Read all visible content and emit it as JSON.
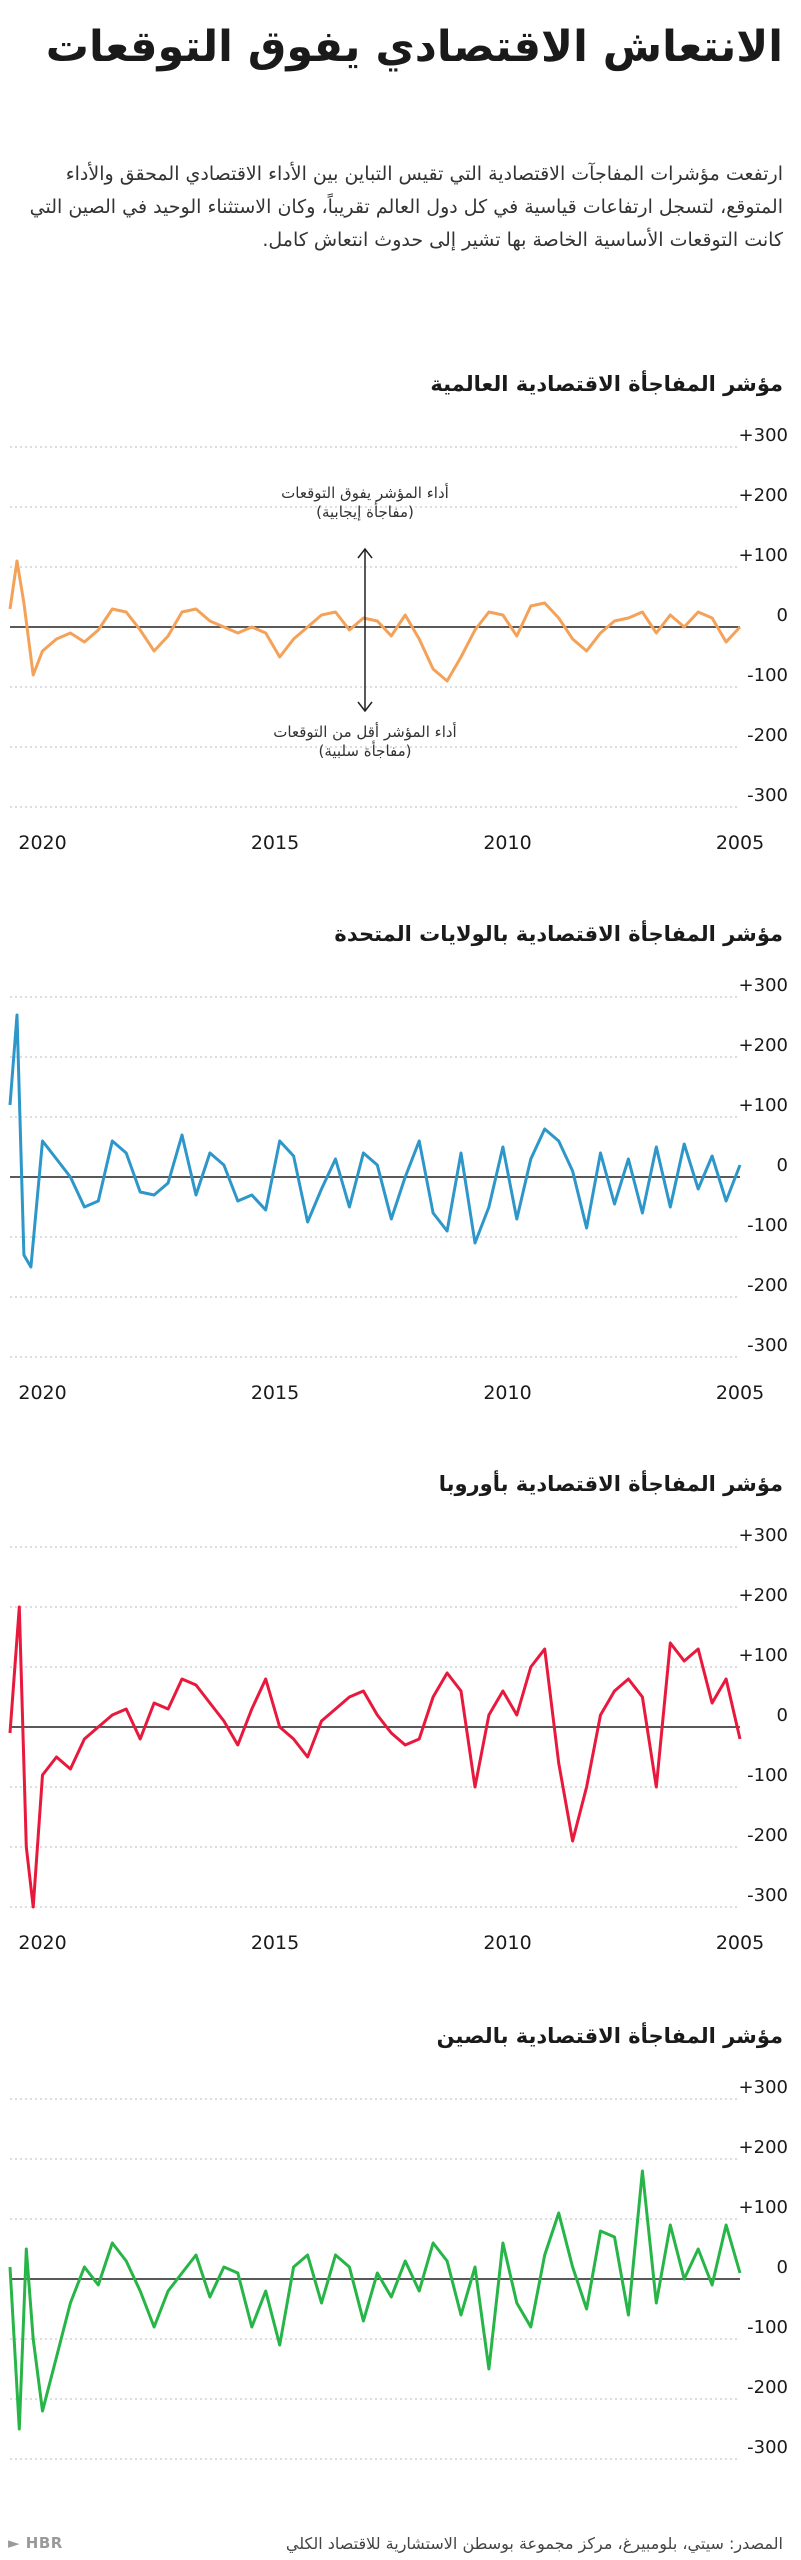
{
  "header": {
    "title": "الانتعاش الاقتصادي يفوق التوقعات",
    "subtitle": "ارتفعت مؤشرات المفاجآت الاقتصادية التي تقيس التباين بين الأداء الاقتصادي المحقق والأداء المتوقع، لتسجل ارتفاعات قياسية في كل دول العالم تقريباً، وكان الاستثناء الوحيد في الصين التي كانت التوقعات الأساسية الخاصة بها تشير إلى حدوث انتعاش كامل."
  },
  "footer": {
    "source": "المصدر: سيتي، بلومبيرغ، مركز مجموعة بوسطن الاستشارية للاقتصاد الكلي",
    "logo": "HBR"
  },
  "colors": {
    "global": "#f4a259",
    "us": "#2e97c9",
    "europe": "#e8193c",
    "china": "#27b548",
    "grid": "#bdbdbd",
    "zero": "#222222"
  },
  "chart_data": [
    {
      "type": "line",
      "title": "مؤشر المفاجأة الاقتصادية العالمية",
      "ylim": [
        -300,
        300
      ],
      "yticks": [
        "+300",
        "+200",
        "+100",
        "0",
        "-100",
        "-200",
        "-300"
      ],
      "xlim": [
        2005,
        2020.7
      ],
      "xticks": [
        "2020",
        "2015",
        "2010",
        "2005"
      ],
      "grid": true,
      "color": "#f4a259",
      "annotations": {
        "positive": [
          "أداء المؤشر يفوق التوقعات",
          "(مفاجأة إيجابية)"
        ],
        "negative": [
          "أداء المؤشر أقل من التوقعات",
          "(مفاجأة سلبية)"
        ]
      },
      "series": [
        {
          "x": [
            2005.0,
            2005.3,
            2005.6,
            2005.9,
            2006.2,
            2006.5,
            2006.8,
            2007.1,
            2007.4,
            2007.7,
            2008.0,
            2008.3,
            2008.6,
            2008.9,
            2009.2,
            2009.5,
            2009.8,
            2010.1,
            2010.4,
            2010.7,
            2011.0,
            2011.3,
            2011.6,
            2011.9,
            2012.2,
            2012.5,
            2012.8,
            2013.1,
            2013.4,
            2013.7,
            2014.0,
            2014.3,
            2014.6,
            2014.9,
            2015.2,
            2015.5,
            2015.8,
            2016.1,
            2016.4,
            2016.7,
            2017.0,
            2017.3,
            2017.6,
            2017.9,
            2018.2,
            2018.5,
            2018.8,
            2019.1,
            2019.4,
            2019.7,
            2020.0,
            2020.2,
            2020.4,
            2020.55,
            2020.7
          ],
          "y": [
            0,
            -25,
            15,
            25,
            0,
            20,
            -10,
            25,
            15,
            10,
            -10,
            -40,
            -20,
            15,
            40,
            35,
            -15,
            20,
            25,
            -5,
            -50,
            -90,
            -70,
            -20,
            20,
            -15,
            10,
            15,
            -5,
            25,
            20,
            0,
            -20,
            -50,
            -10,
            0,
            -10,
            0,
            10,
            30,
            25,
            -15,
            -40,
            -5,
            25,
            30,
            -5,
            -25,
            -10,
            -20,
            -40,
            -80,
            40,
            110,
            30
          ]
        }
      ]
    },
    {
      "type": "line",
      "title": "مؤشر المفاجأة الاقتصادية بالولايات المتحدة",
      "ylim": [
        -300,
        300
      ],
      "yticks": [
        "+300",
        "+200",
        "+100",
        "0",
        "-100",
        "-200",
        "-300"
      ],
      "xlim": [
        2005,
        2020.7
      ],
      "xticks": [
        "2020",
        "2005",
        "2010",
        "2015"
      ],
      "grid": true,
      "color": "#2e97c9",
      "series": [
        {
          "x": [
            2005.0,
            2005.3,
            2005.6,
            2005.9,
            2006.2,
            2006.5,
            2006.8,
            2007.1,
            2007.4,
            2007.7,
            2008.0,
            2008.3,
            2008.6,
            2008.9,
            2009.2,
            2009.5,
            2009.8,
            2010.1,
            2010.4,
            2010.7,
            2011.0,
            2011.3,
            2011.6,
            2011.9,
            2012.2,
            2012.5,
            2012.8,
            2013.1,
            2013.4,
            2013.7,
            2014.0,
            2014.3,
            2014.6,
            2014.9,
            2015.2,
            2015.5,
            2015.8,
            2016.1,
            2016.4,
            2016.7,
            2017.0,
            2017.3,
            2017.6,
            2017.9,
            2018.2,
            2018.5,
            2018.8,
            2019.1,
            2019.4,
            2019.7,
            2020.0,
            2020.25,
            2020.4,
            2020.55,
            2020.7
          ],
          "y": [
            20,
            -40,
            35,
            -20,
            55,
            -50,
            50,
            -60,
            30,
            -45,
            40,
            -85,
            10,
            60,
            80,
            30,
            -70,
            50,
            -50,
            -110,
            40,
            -90,
            -60,
            60,
            0,
            -70,
            20,
            40,
            -50,
            30,
            -20,
            -75,
            35,
            60,
            -55,
            -30,
            -40,
            20,
            40,
            -30,
            70,
            -10,
            -30,
            -25,
            40,
            60,
            -40,
            -50,
            0,
            30,
            60,
            -150,
            -130,
            270,
            120
          ]
        }
      ]
    },
    {
      "type": "line",
      "title": "مؤشر المفاجأة الاقتصادية بأوروبا",
      "ylim": [
        -300,
        300
      ],
      "yticks": [
        "+300",
        "+200",
        "+100",
        "0",
        "-100",
        "-200",
        "-300"
      ],
      "xlim": [
        2005,
        2020.7
      ],
      "xticks": [
        "2020",
        "2015",
        "2010",
        "2005"
      ],
      "grid": true,
      "color": "#e8193c",
      "series": [
        {
          "x": [
            2005.0,
            2005.3,
            2005.6,
            2005.9,
            2006.2,
            2006.5,
            2006.8,
            2007.1,
            2007.4,
            2007.7,
            2008.0,
            2008.3,
            2008.6,
            2008.9,
            2009.2,
            2009.5,
            2009.8,
            2010.1,
            2010.4,
            2010.7,
            2011.0,
            2011.3,
            2011.6,
            2011.9,
            2012.2,
            2012.5,
            2012.8,
            2013.1,
            2013.4,
            2013.7,
            2014.0,
            2014.3,
            2014.6,
            2014.9,
            2015.2,
            2015.5,
            2015.8,
            2016.1,
            2016.4,
            2016.7,
            2017.0,
            2017.3,
            2017.6,
            2017.9,
            2018.2,
            2018.5,
            2018.8,
            2019.1,
            2019.4,
            2019.7,
            2020.0,
            2020.2,
            2020.35,
            2020.5,
            2020.7
          ],
          "y": [
            -20,
            80,
            40,
            130,
            110,
            140,
            -100,
            50,
            80,
            60,
            20,
            -100,
            -190,
            -60,
            130,
            100,
            20,
            60,
            20,
            -100,
            60,
            90,
            50,
            -20,
            -30,
            -10,
            20,
            60,
            50,
            30,
            10,
            -50,
            -20,
            0,
            80,
            30,
            -30,
            10,
            40,
            70,
            80,
            30,
            40,
            -20,
            30,
            20,
            0,
            -20,
            -70,
            -50,
            -80,
            -300,
            -200,
            200,
            -10
          ]
        }
      ]
    },
    {
      "type": "line",
      "title": "مؤشر المفاجأة الاقتصادية بالصين",
      "ylim": [
        -300,
        300
      ],
      "yticks": [
        "+300",
        "+200",
        "+100",
        "0",
        "-100",
        "-200",
        "-300"
      ],
      "xlim": [
        2005,
        2020.7
      ],
      "grid": true,
      "color": "#27b548",
      "series": [
        {
          "x": [
            2005.0,
            2005.3,
            2005.6,
            2005.9,
            2006.2,
            2006.5,
            2006.8,
            2007.1,
            2007.4,
            2007.7,
            2008.0,
            2008.3,
            2008.6,
            2008.9,
            2009.2,
            2009.5,
            2009.8,
            2010.1,
            2010.4,
            2010.7,
            2011.0,
            2011.3,
            2011.6,
            2011.9,
            2012.2,
            2012.5,
            2012.8,
            2013.1,
            2013.4,
            2013.7,
            2014.0,
            2014.3,
            2014.6,
            2014.9,
            2015.2,
            2015.5,
            2015.8,
            2016.1,
            2016.4,
            2016.7,
            2017.0,
            2017.3,
            2017.6,
            2017.9,
            2018.2,
            2018.5,
            2018.8,
            2019.1,
            2019.4,
            2019.7,
            2020.0,
            2020.2,
            2020.35,
            2020.5,
            2020.7
          ],
          "y": [
            10,
            90,
            -10,
            50,
            0,
            90,
            -40,
            180,
            -60,
            70,
            80,
            -50,
            20,
            110,
            40,
            -80,
            -40,
            60,
            -150,
            20,
            -60,
            30,
            60,
            -20,
            30,
            -30,
            10,
            -70,
            20,
            40,
            -40,
            40,
            20,
            -110,
            -20,
            -80,
            10,
            20,
            -30,
            40,
            10,
            -20,
            -80,
            -20,
            30,
            60,
            -10,
            20,
            -40,
            -130,
            -220,
            -100,
            50,
            -250,
            20
          ]
        }
      ]
    }
  ]
}
